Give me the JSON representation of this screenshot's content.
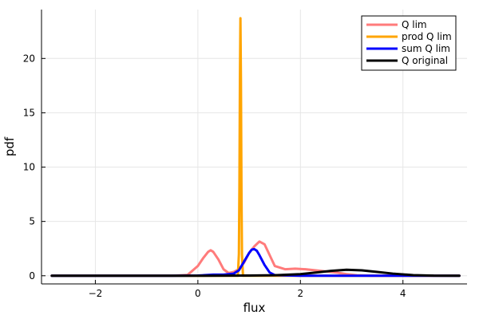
{
  "chart_data": {
    "type": "line",
    "xlabel": "flux",
    "ylabel": "pdf",
    "xlim": [
      -3.05,
      5.25
    ],
    "ylim": [
      -0.75,
      24.5
    ],
    "xticks": [
      -2,
      0,
      2,
      4
    ],
    "yticks": [
      0,
      5,
      10,
      15,
      20
    ],
    "grid": true,
    "legend_position": "top-right",
    "colors": {
      "q_lim": "#ff7b7b",
      "prod_q_lim": "#ffa500",
      "sum_q_lim": "#0000ff",
      "q_original": "#000000",
      "grid": "#e6e6e6",
      "axis": "#000000"
    },
    "series": [
      {
        "name": "Q lim",
        "color": "#ff7b7b",
        "x": [
          -2.85,
          -0.5,
          -0.2,
          0.0,
          0.1,
          0.2,
          0.25,
          0.3,
          0.4,
          0.5,
          0.6,
          0.7,
          0.8,
          0.9,
          1.0,
          1.1,
          1.2,
          1.3,
          1.4,
          1.5,
          1.7,
          1.9,
          2.1,
          2.3,
          2.5,
          2.7,
          2.9,
          3.1,
          3.4,
          5.1
        ],
        "y": [
          0,
          0,
          0.08,
          0.9,
          1.6,
          2.2,
          2.35,
          2.2,
          1.5,
          0.6,
          0.25,
          0.35,
          0.6,
          1.2,
          2.1,
          2.7,
          3.15,
          2.9,
          1.9,
          0.9,
          0.6,
          0.65,
          0.6,
          0.5,
          0.4,
          0.3,
          0.15,
          0.05,
          0,
          0
        ]
      },
      {
        "name": "prod Q lim",
        "color": "#ffa500",
        "x": [
          -2.85,
          0.7,
          0.78,
          0.8,
          0.81,
          0.82,
          0.83,
          0.84,
          0.85,
          0.86,
          0.88,
          0.95,
          5.1
        ],
        "y": [
          0,
          0,
          0,
          2.0,
          8.0,
          18.0,
          23.7,
          18.0,
          8.0,
          2.0,
          0,
          0,
          0
        ]
      },
      {
        "name": "sum Q lim",
        "color": "#0000ff",
        "x": [
          -2.85,
          -0.5,
          0.0,
          0.3,
          0.5,
          0.7,
          0.8,
          0.9,
          1.0,
          1.05,
          1.1,
          1.15,
          1.2,
          1.3,
          1.4,
          1.5,
          2.0,
          5.1
        ],
        "y": [
          0,
          0,
          0.02,
          0.1,
          0.1,
          0.2,
          0.5,
          1.3,
          2.1,
          2.4,
          2.45,
          2.3,
          1.9,
          1.0,
          0.3,
          0.06,
          0,
          0
        ]
      },
      {
        "name": "Q original",
        "color": "#000000",
        "x": [
          -2.85,
          0.0,
          1.0,
          1.5,
          2.0,
          2.3,
          2.6,
          2.9,
          3.2,
          3.5,
          3.8,
          4.2,
          4.6,
          5.1
        ],
        "y": [
          0,
          0,
          0.02,
          0.05,
          0.15,
          0.3,
          0.45,
          0.55,
          0.5,
          0.35,
          0.2,
          0.06,
          0.01,
          0
        ]
      }
    ]
  }
}
